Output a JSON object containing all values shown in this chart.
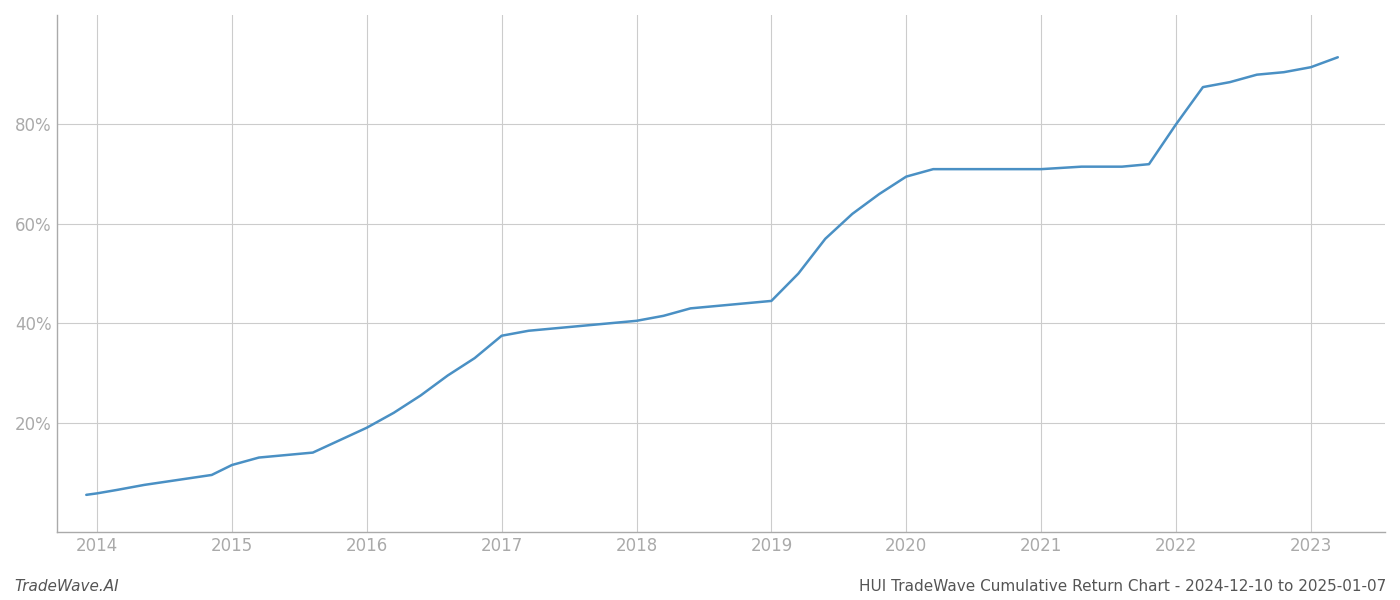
{
  "title": "HUI TradeWave Cumulative Return Chart - 2024-12-10 to 2025-01-07",
  "watermark": "TradeWave.AI",
  "line_color": "#4a90c4",
  "background_color": "#ffffff",
  "grid_color": "#cccccc",
  "x_years": [
    2013.92,
    2014.0,
    2014.15,
    2014.35,
    2014.6,
    2014.85,
    2015.0,
    2015.2,
    2015.4,
    2015.6,
    2015.8,
    2016.0,
    2016.2,
    2016.4,
    2016.6,
    2016.8,
    2017.0,
    2017.2,
    2017.4,
    2017.6,
    2017.8,
    2018.0,
    2018.2,
    2018.4,
    2018.6,
    2018.8,
    2019.0,
    2019.2,
    2019.4,
    2019.6,
    2019.8,
    2020.0,
    2020.2,
    2020.4,
    2020.6,
    2021.0,
    2021.3,
    2021.6,
    2021.8,
    2022.0,
    2022.2,
    2022.4,
    2022.6,
    2022.8,
    2023.0,
    2023.2
  ],
  "y_values": [
    0.055,
    0.058,
    0.065,
    0.075,
    0.085,
    0.095,
    0.115,
    0.13,
    0.135,
    0.14,
    0.165,
    0.19,
    0.22,
    0.255,
    0.295,
    0.33,
    0.375,
    0.385,
    0.39,
    0.395,
    0.4,
    0.405,
    0.415,
    0.43,
    0.435,
    0.44,
    0.445,
    0.5,
    0.57,
    0.62,
    0.66,
    0.695,
    0.71,
    0.71,
    0.71,
    0.71,
    0.715,
    0.715,
    0.72,
    0.8,
    0.875,
    0.885,
    0.9,
    0.905,
    0.915,
    0.935
  ],
  "xlim": [
    2013.7,
    2023.55
  ],
  "ylim": [
    -0.02,
    1.02
  ],
  "yticks": [
    0.2,
    0.4,
    0.6,
    0.8
  ],
  "ytick_labels": [
    "20%",
    "40%",
    "60%",
    "80%"
  ],
  "xtick_years": [
    2014,
    2015,
    2016,
    2017,
    2018,
    2019,
    2020,
    2021,
    2022,
    2023
  ],
  "line_width": 1.8,
  "axis_color": "#aaaaaa",
  "tick_color": "#aaaaaa",
  "spine_color": "#aaaaaa",
  "label_fontsize": 12,
  "watermark_fontsize": 11,
  "title_fontsize": 11
}
